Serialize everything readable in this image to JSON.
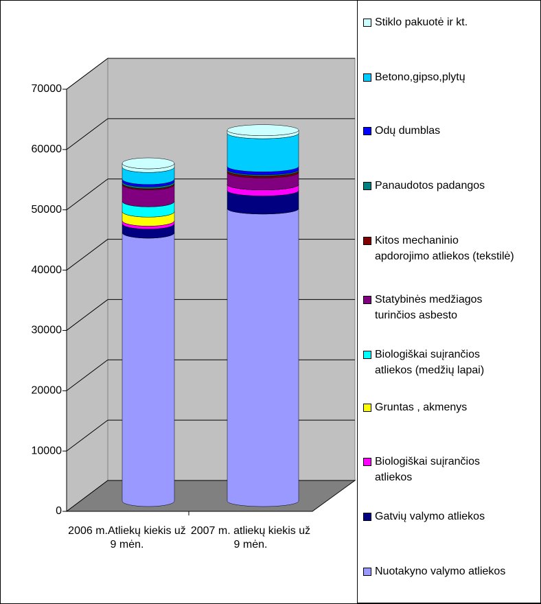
{
  "chart_data": {
    "type": "bar",
    "stacked": true,
    "shape": "cylinder",
    "categories": [
      "2006 m.Atliekų kiekis už 9 mėn.",
      "2007 m. atliekų kiekis už 9 mėn."
    ],
    "series": [
      {
        "name": "Nuotakyno valymo atliekos",
        "color": "#9999FF",
        "values": [
          44500,
          48500
        ]
      },
      {
        "name": "Gatvių valymo atliekos",
        "color": "#000080",
        "values": [
          1500,
          3000
        ]
      },
      {
        "name": "Biologiškai suįrančios atliekos",
        "color": "#FF00FF",
        "values": [
          500,
          1000
        ]
      },
      {
        "name": "Gruntas , akmenys",
        "color": "#FFFF00",
        "values": [
          1500,
          0
        ]
      },
      {
        "name": "Biologiškai suįrančios atliekos (medžių lapai)",
        "color": "#00FFFF",
        "values": [
          1700,
          0
        ]
      },
      {
        "name": "Statybinės medžiagos turinčios asbesto",
        "color": "#800080",
        "values": [
          2800,
          2000
        ]
      },
      {
        "name": "Kitos mechaninio apdorojimo atliekos (tekstilė)",
        "color": "#800000",
        "values": [
          200,
          300
        ]
      },
      {
        "name": "Panaudotos padangos",
        "color": "#008080",
        "values": [
          300,
          200
        ]
      },
      {
        "name": "Odų dumblas",
        "color": "#0000FF",
        "values": [
          400,
          500
        ]
      },
      {
        "name": "Betono,gipso,plytų",
        "color": "#00CCFF",
        "values": [
          2000,
          5500
        ]
      },
      {
        "name": "Stiklo pakuotė ir kt.",
        "color": "#CCFFFF",
        "values": [
          600,
          500
        ]
      }
    ],
    "ylim": [
      0,
      70000
    ],
    "yticks": [
      0,
      10000,
      20000,
      30000,
      40000,
      50000,
      60000,
      70000
    ],
    "grid": true,
    "legend": "right"
  }
}
